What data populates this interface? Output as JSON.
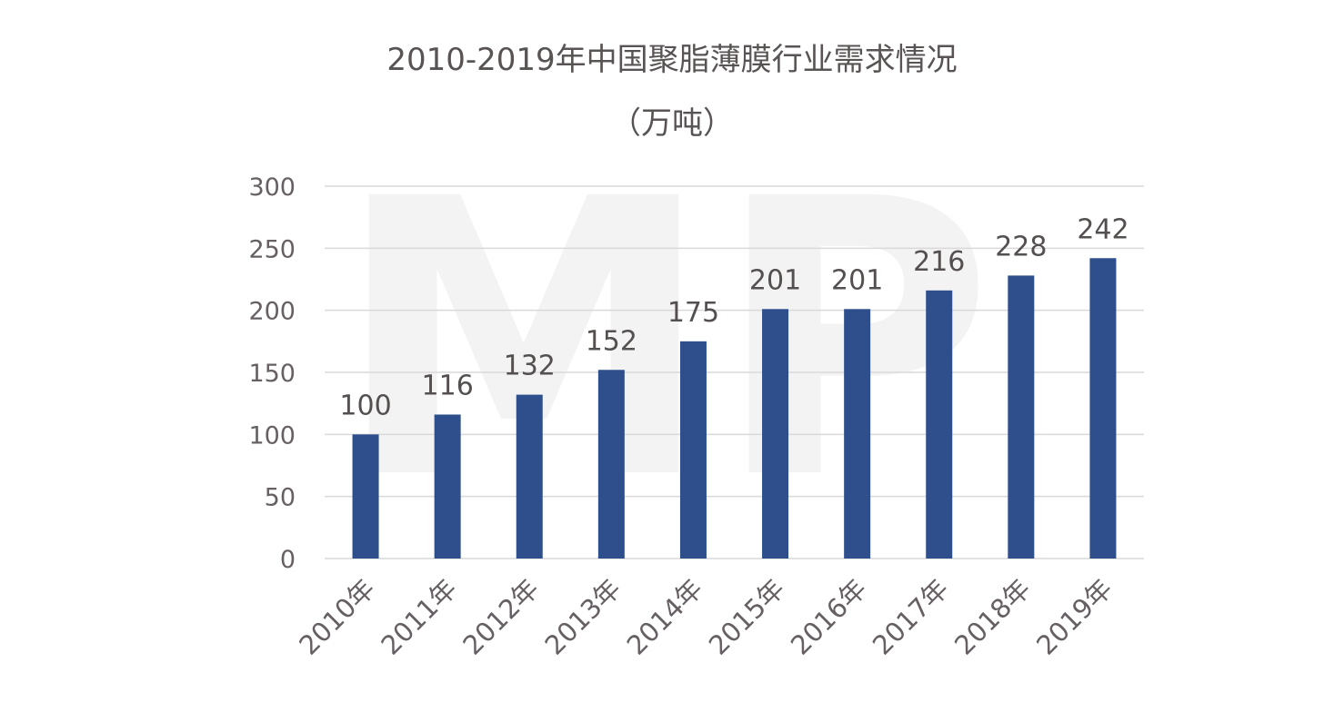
{
  "chart_data": {
    "type": "bar",
    "title": "2010-2019年中国聚脂薄膜行业需求情况",
    "subtitle": "（万吨）",
    "categories": [
      "2010年",
      "2011年",
      "2012年",
      "2013年",
      "2014年",
      "2015年",
      "2016年",
      "2017年",
      "2018年",
      "2019年"
    ],
    "values": [
      100,
      116,
      132,
      152,
      175,
      201,
      201,
      216,
      228,
      242
    ],
    "ylim": [
      0,
      300
    ],
    "yticks": [
      0,
      50,
      100,
      150,
      200,
      250,
      300
    ],
    "grid": true,
    "bar_color": "#2e4f8c",
    "legend": "none"
  },
  "watermark": "MP"
}
